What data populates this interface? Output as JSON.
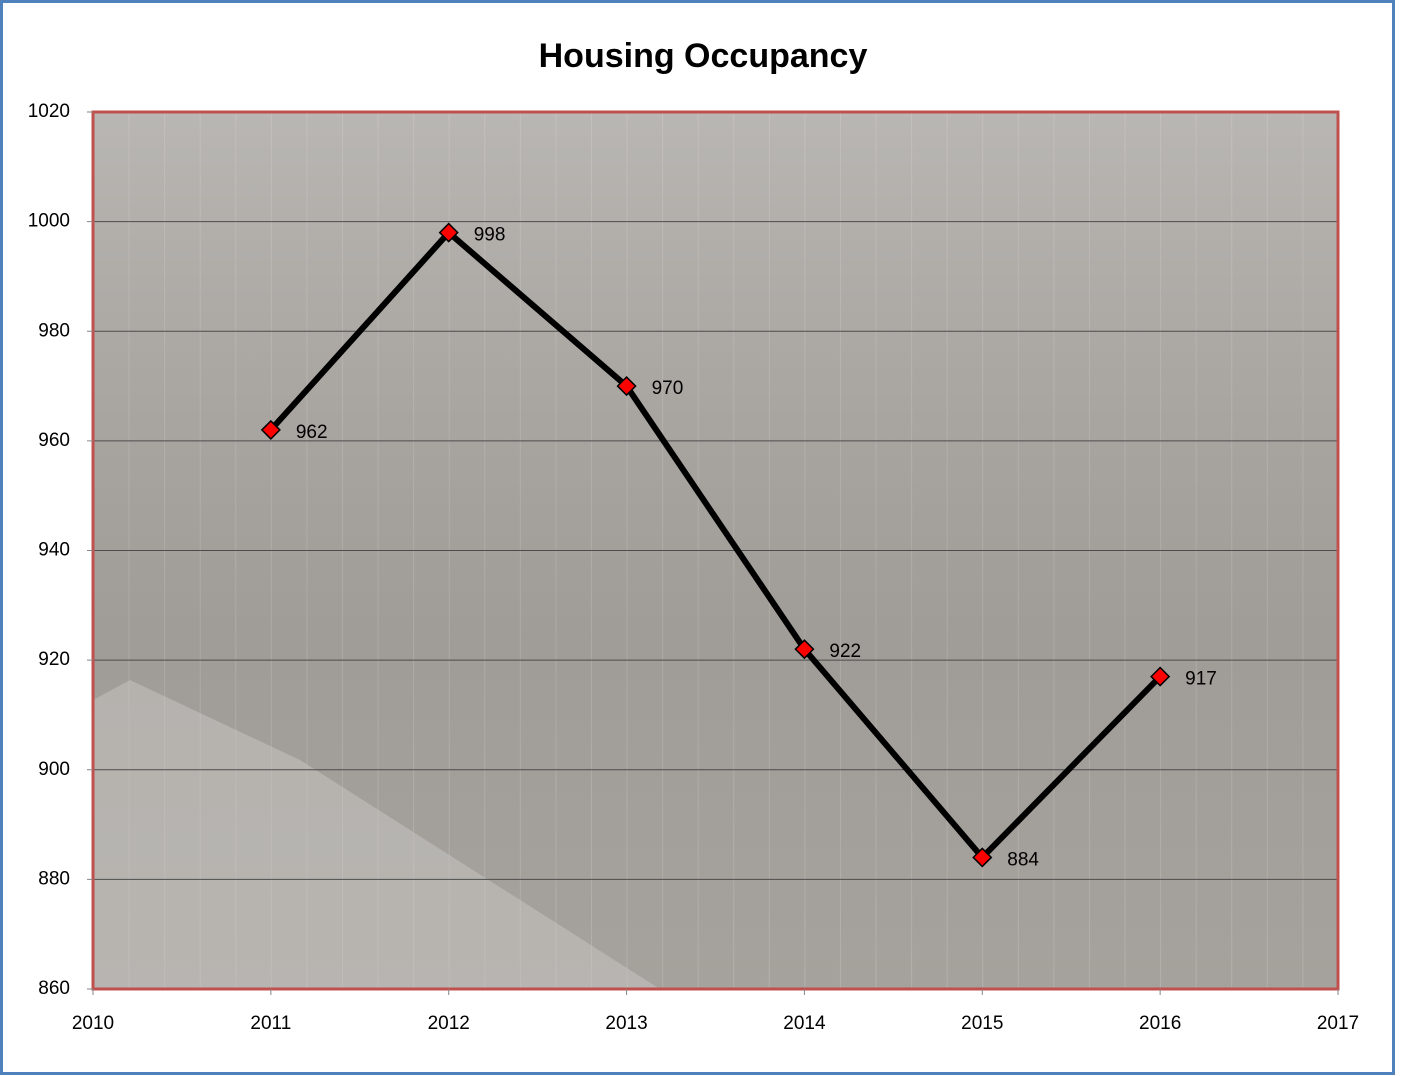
{
  "chart_data": {
    "type": "line",
    "title": "Housing Occupancy",
    "x": [
      2011,
      2012,
      2013,
      2014,
      2015,
      2016
    ],
    "values": [
      962,
      998,
      970,
      922,
      884,
      917
    ],
    "color": "#000000",
    "marker_color": "#ff0000",
    "xlim": [
      2010,
      2017
    ],
    "xticks": [
      2010,
      2011,
      2012,
      2013,
      2014,
      2015,
      2016,
      2017
    ],
    "ylim": [
      860,
      1020
    ],
    "yticks": [
      860,
      880,
      900,
      920,
      940,
      960,
      980,
      1000,
      1020
    ],
    "grid": true
  }
}
